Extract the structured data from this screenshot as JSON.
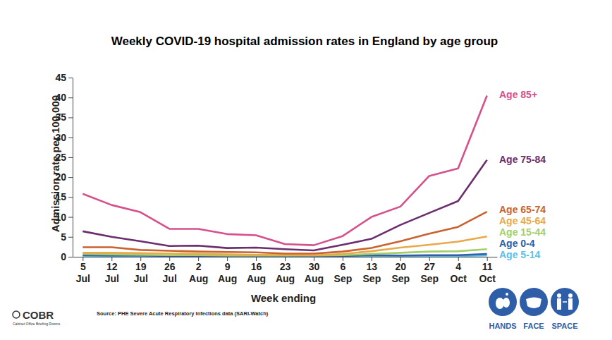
{
  "chart_data": {
    "type": "line",
    "title": "Weekly COVID-19 hospital admission rates in England by age group",
    "x_label": "Week ending",
    "y_label": "Admission rate per 100,000",
    "source": "Source: PHE Severe Acute Respiratory Infections data (SARI-Watch)",
    "logo": {
      "title": "COBR",
      "subtitle": "Cabinet Office Briefing Rooms"
    },
    "footer_icons": [
      "HANDS",
      "FACE",
      "SPACE"
    ],
    "categories": [
      "5 Jul",
      "12 Jul",
      "19 Jul",
      "26 Jul",
      "2 Aug",
      "9 Aug",
      "16 Aug",
      "23 Aug",
      "30 Aug",
      "6 Sep",
      "13 Sep",
      "20 Sep",
      "27 Sep",
      "4 Oct",
      "11 Oct"
    ],
    "ylim": [
      0,
      45
    ],
    "yticks": [
      0,
      5,
      10,
      15,
      20,
      25,
      30,
      35,
      40,
      45
    ],
    "grid": false,
    "legend": "right",
    "series": [
      {
        "name": "Age 85+",
        "color": "#d6508c",
        "values": [
          15.8,
          13.0,
          11.2,
          7.0,
          7.0,
          5.7,
          5.4,
          3.2,
          2.9,
          5.2,
          10.0,
          12.6,
          20.3,
          22.2,
          40.5
        ]
      },
      {
        "name": "Age 75-84",
        "color": "#6b2d6e",
        "values": [
          6.4,
          5.0,
          3.9,
          2.7,
          2.8,
          2.2,
          2.3,
          1.9,
          1.6,
          3.0,
          4.5,
          8.0,
          11.0,
          14.0,
          24.3
        ]
      },
      {
        "name": "Age 65-74",
        "color": "#c9622e",
        "values": [
          2.4,
          2.4,
          1.7,
          1.5,
          1.3,
          1.2,
          1.1,
          0.8,
          0.8,
          1.3,
          2.2,
          3.9,
          5.8,
          7.5,
          11.3
        ]
      },
      {
        "name": "Age 45-64",
        "color": "#e8a94a",
        "values": [
          1.0,
          1.0,
          0.9,
          0.8,
          0.7,
          0.6,
          0.5,
          0.5,
          0.4,
          0.7,
          1.4,
          2.3,
          3.0,
          3.8,
          5.1
        ]
      },
      {
        "name": "Age 15-44",
        "color": "#a3cf6a",
        "values": [
          0.7,
          0.6,
          0.5,
          0.4,
          0.4,
          0.3,
          0.3,
          0.3,
          0.3,
          0.4,
          0.7,
          1.0,
          1.3,
          1.4,
          1.9
        ]
      },
      {
        "name": "Age 0-4",
        "color": "#2f5fa8",
        "values": [
          0.4,
          0.3,
          0.3,
          0.2,
          0.2,
          0.2,
          0.2,
          0.2,
          0.2,
          0.2,
          0.4,
          0.3,
          0.4,
          0.4,
          0.7
        ]
      },
      {
        "name": "Age 5-14",
        "color": "#5cc0e8",
        "values": [
          0.1,
          0.1,
          0.1,
          0.1,
          0.1,
          0.1,
          0.1,
          0.1,
          0.1,
          0.1,
          0.1,
          0.1,
          0.2,
          0.2,
          0.3
        ]
      }
    ]
  }
}
